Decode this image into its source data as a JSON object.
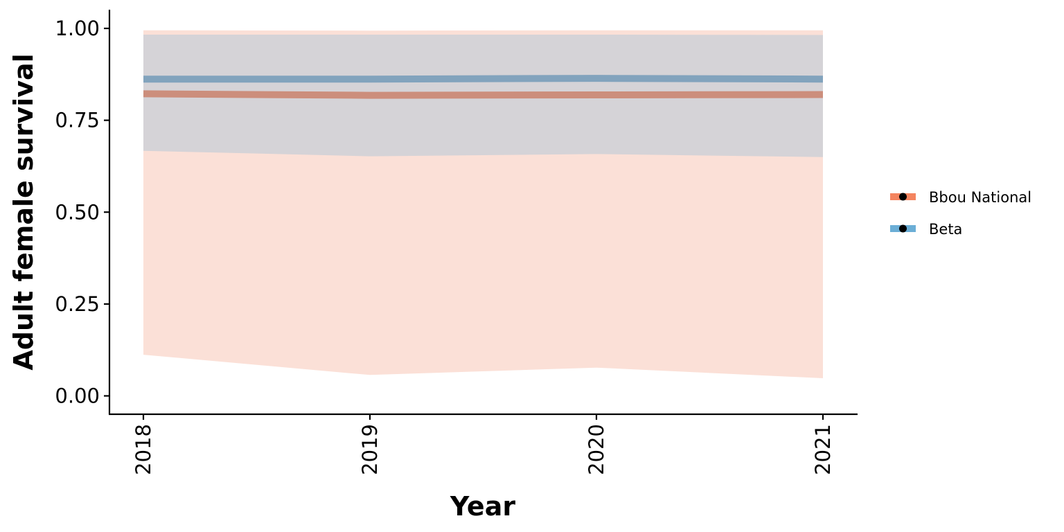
{
  "chart_data": {
    "type": "area",
    "title": "",
    "xlabel": "Year",
    "ylabel": "Adult female survival",
    "x": [
      2018,
      2019,
      2020,
      2021
    ],
    "ylim": [
      -0.05,
      1.05
    ],
    "yticks": [
      0.0,
      0.25,
      0.5,
      0.75,
      1.0
    ],
    "ytick_labels": [
      "0.00",
      "0.25",
      "0.50",
      "0.75",
      "1.00"
    ],
    "xtick_labels": [
      "2018",
      "2019",
      "2020",
      "2021"
    ],
    "grid": false,
    "legend_position": "right",
    "series": [
      {
        "name": "Bbou National",
        "color": "#f4845f",
        "ribbon_fill": "#fbe0d7",
        "line_color": "#cc8e7c",
        "mean": [
          0.822,
          0.818,
          0.819,
          0.82
        ],
        "lower": [
          0.112,
          0.057,
          0.077,
          0.048
        ],
        "upper": [
          0.995,
          0.994,
          0.995,
          0.995
        ]
      },
      {
        "name": "Beta",
        "color": "#6baed6",
        "ribbon_fill": "#d5d3d7",
        "line_color": "#82a3bd",
        "mean": [
          0.862,
          0.862,
          0.864,
          0.862
        ],
        "lower": [
          0.667,
          0.652,
          0.658,
          0.65
        ],
        "upper": [
          0.983,
          0.983,
          0.983,
          0.982
        ]
      }
    ]
  }
}
